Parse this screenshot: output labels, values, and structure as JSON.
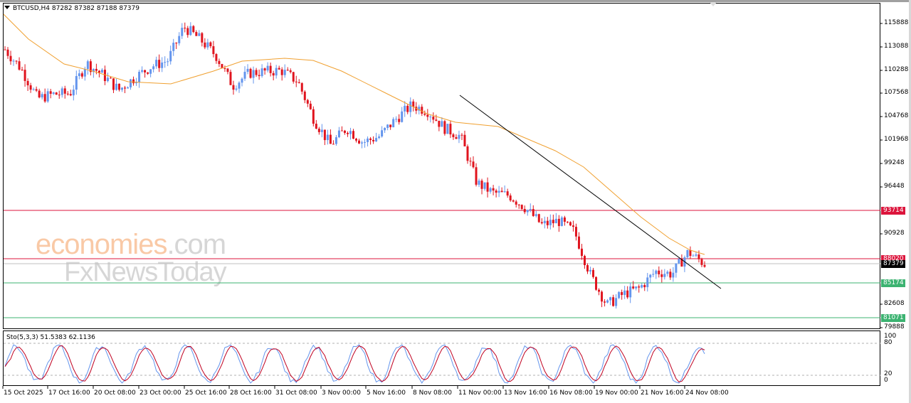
{
  "header": {
    "symbol": "BTCUSD,H4",
    "ohlc": "87282 87382 87188 87379",
    "title_full": "BTCUSD,H4  87282 87382 87188 87379"
  },
  "watermark": {
    "line1_main": "economies",
    "line1_suffix": ".com",
    "line2": "FxNewsToday"
  },
  "price_axis": {
    "labels": [
      "115888",
      "113088",
      "110288",
      "107568",
      "104768",
      "101968",
      "99248",
      "96448",
      "90928",
      "82608",
      "79888"
    ]
  },
  "levels": [
    {
      "name": "resistance-93714",
      "value": "93714",
      "color": "#dc143c"
    },
    {
      "name": "resistance-88020",
      "value": "88020",
      "color": "#dc143c"
    },
    {
      "name": "current-price",
      "value": "87379",
      "color": "#000000"
    },
    {
      "name": "support-85174",
      "value": "85174",
      "color": "#3cb371"
    },
    {
      "name": "support-81071",
      "value": "81071",
      "color": "#3cb371"
    }
  ],
  "indicator": {
    "label": "Sto(5,3,3) 51.5383 62.1136",
    "axis_labels": [
      "100",
      "80",
      "20",
      "0"
    ]
  },
  "time_axis": {
    "labels": [
      "15 Oct 2025",
      "17 Oct 16:00",
      "20 Oct 08:00",
      "23 Oct 00:00",
      "25 Oct 16:00",
      "28 Oct 16:00",
      "31 Oct 08:00",
      "3 Nov 00:00",
      "5 Nov 16:00",
      "8 Nov 08:00",
      "11 Nov 00:00",
      "13 Nov 16:00",
      "16 Nov 08:00",
      "19 Nov 00:00",
      "21 Nov 16:00",
      "24 Nov 08:00"
    ]
  },
  "colors": {
    "bull": "#6495ed",
    "bear": "#e0141e",
    "ma": "#f0a030",
    "trendline": "#000000",
    "sto_main": "#6495ed",
    "sto_signal": "#c00020"
  },
  "chart_data": {
    "type": "candlestick",
    "title": "BTCUSD,H4",
    "ohlc_last": {
      "open": 87282,
      "high": 87382,
      "low": 87188,
      "close": 87379
    },
    "ylim": [
      79888,
      117500
    ],
    "yticks": [
      115888,
      113088,
      110288,
      107568,
      104768,
      101968,
      99248,
      96448,
      90928,
      82608,
      79888
    ],
    "xticks": [
      "15 Oct 2025",
      "17 Oct 16:00",
      "20 Oct 08:00",
      "23 Oct 00:00",
      "25 Oct 16:00",
      "28 Oct 16:00",
      "31 Oct 08:00",
      "3 Nov 00:00",
      "5 Nov 16:00",
      "8 Nov 08:00",
      "11 Nov 00:00",
      "13 Nov 16:00",
      "16 Nov 08:00",
      "19 Nov 00:00",
      "21 Nov 16:00",
      "24 Nov 08:00"
    ],
    "horizontal_levels": [
      93714,
      88020,
      85174,
      81071
    ],
    "current_price": 87379,
    "moving_average": "orange MA overlay",
    "trendline": {
      "from": {
        "date": "10 Nov 20:00",
        "price": 107300
      },
      "to": {
        "date": "25 Nov 04:00",
        "price": 84800
      }
    },
    "price_path_approx": [
      {
        "x": "15 Oct 2025",
        "close": 112800
      },
      {
        "x": "16 Oct",
        "close": 110500
      },
      {
        "x": "17 Oct",
        "close": 107000
      },
      {
        "x": "17 Oct 16:00",
        "close": 107500
      },
      {
        "x": "18 Oct",
        "close": 107600
      },
      {
        "x": "20 Oct 08:00",
        "close": 111200
      },
      {
        "x": "21 Oct",
        "close": 109800
      },
      {
        "x": "22 Oct",
        "close": 108000
      },
      {
        "x": "23 Oct 00:00",
        "close": 109500
      },
      {
        "x": "24 Oct",
        "close": 110800
      },
      {
        "x": "25 Oct 16:00",
        "close": 111500
      },
      {
        "x": "27 Oct",
        "close": 115500
      },
      {
        "x": "28 Oct 16:00",
        "close": 114000
      },
      {
        "x": "29 Oct",
        "close": 112000
      },
      {
        "x": "30 Oct",
        "close": 108500
      },
      {
        "x": "31 Oct 08:00",
        "close": 110000
      },
      {
        "x": "1 Nov",
        "close": 110200
      },
      {
        "x": "2 Nov",
        "close": 110300
      },
      {
        "x": "3 Nov 00:00",
        "close": 109000
      },
      {
        "x": "4 Nov",
        "close": 104500
      },
      {
        "x": "5 Nov",
        "close": 101500
      },
      {
        "x": "5 Nov 16:00",
        "close": 103500
      },
      {
        "x": "7 Nov",
        "close": 101800
      },
      {
        "x": "8 Nov 08:00",
        "close": 102500
      },
      {
        "x": "9 Nov",
        "close": 104500
      },
      {
        "x": "10 Nov",
        "close": 106200
      },
      {
        "x": "11 Nov 00:00",
        "close": 105500
      },
      {
        "x": "12 Nov",
        "close": 103500
      },
      {
        "x": "13 Nov 16:00",
        "close": 102500
      },
      {
        "x": "14 Nov",
        "close": 97000
      },
      {
        "x": "15 Nov",
        "close": 95800
      },
      {
        "x": "16 Nov 08:00",
        "close": 95500
      },
      {
        "x": "17 Nov",
        "close": 94000
      },
      {
        "x": "18 Nov",
        "close": 92000
      },
      {
        "x": "19 Nov 00:00",
        "close": 92500
      },
      {
        "x": "19 Nov",
        "close": 91200
      },
      {
        "x": "20 Nov",
        "close": 86000
      },
      {
        "x": "21 Nov",
        "close": 82500
      },
      {
        "x": "21 Nov 16:00",
        "close": 83800
      },
      {
        "x": "22 Nov",
        "close": 84500
      },
      {
        "x": "23 Nov",
        "close": 86500
      },
      {
        "x": "24 Nov",
        "close": 86200
      },
      {
        "x": "24 Nov 08:00",
        "close": 88800
      },
      {
        "x": "25 Nov",
        "close": 87379
      }
    ],
    "indicator": {
      "name": "Stochastic Oscillator",
      "params": "5,3,3",
      "main": 51.5383,
      "signal": 62.1136,
      "levels": [
        20,
        80
      ],
      "ylim": [
        0,
        100
      ]
    }
  }
}
